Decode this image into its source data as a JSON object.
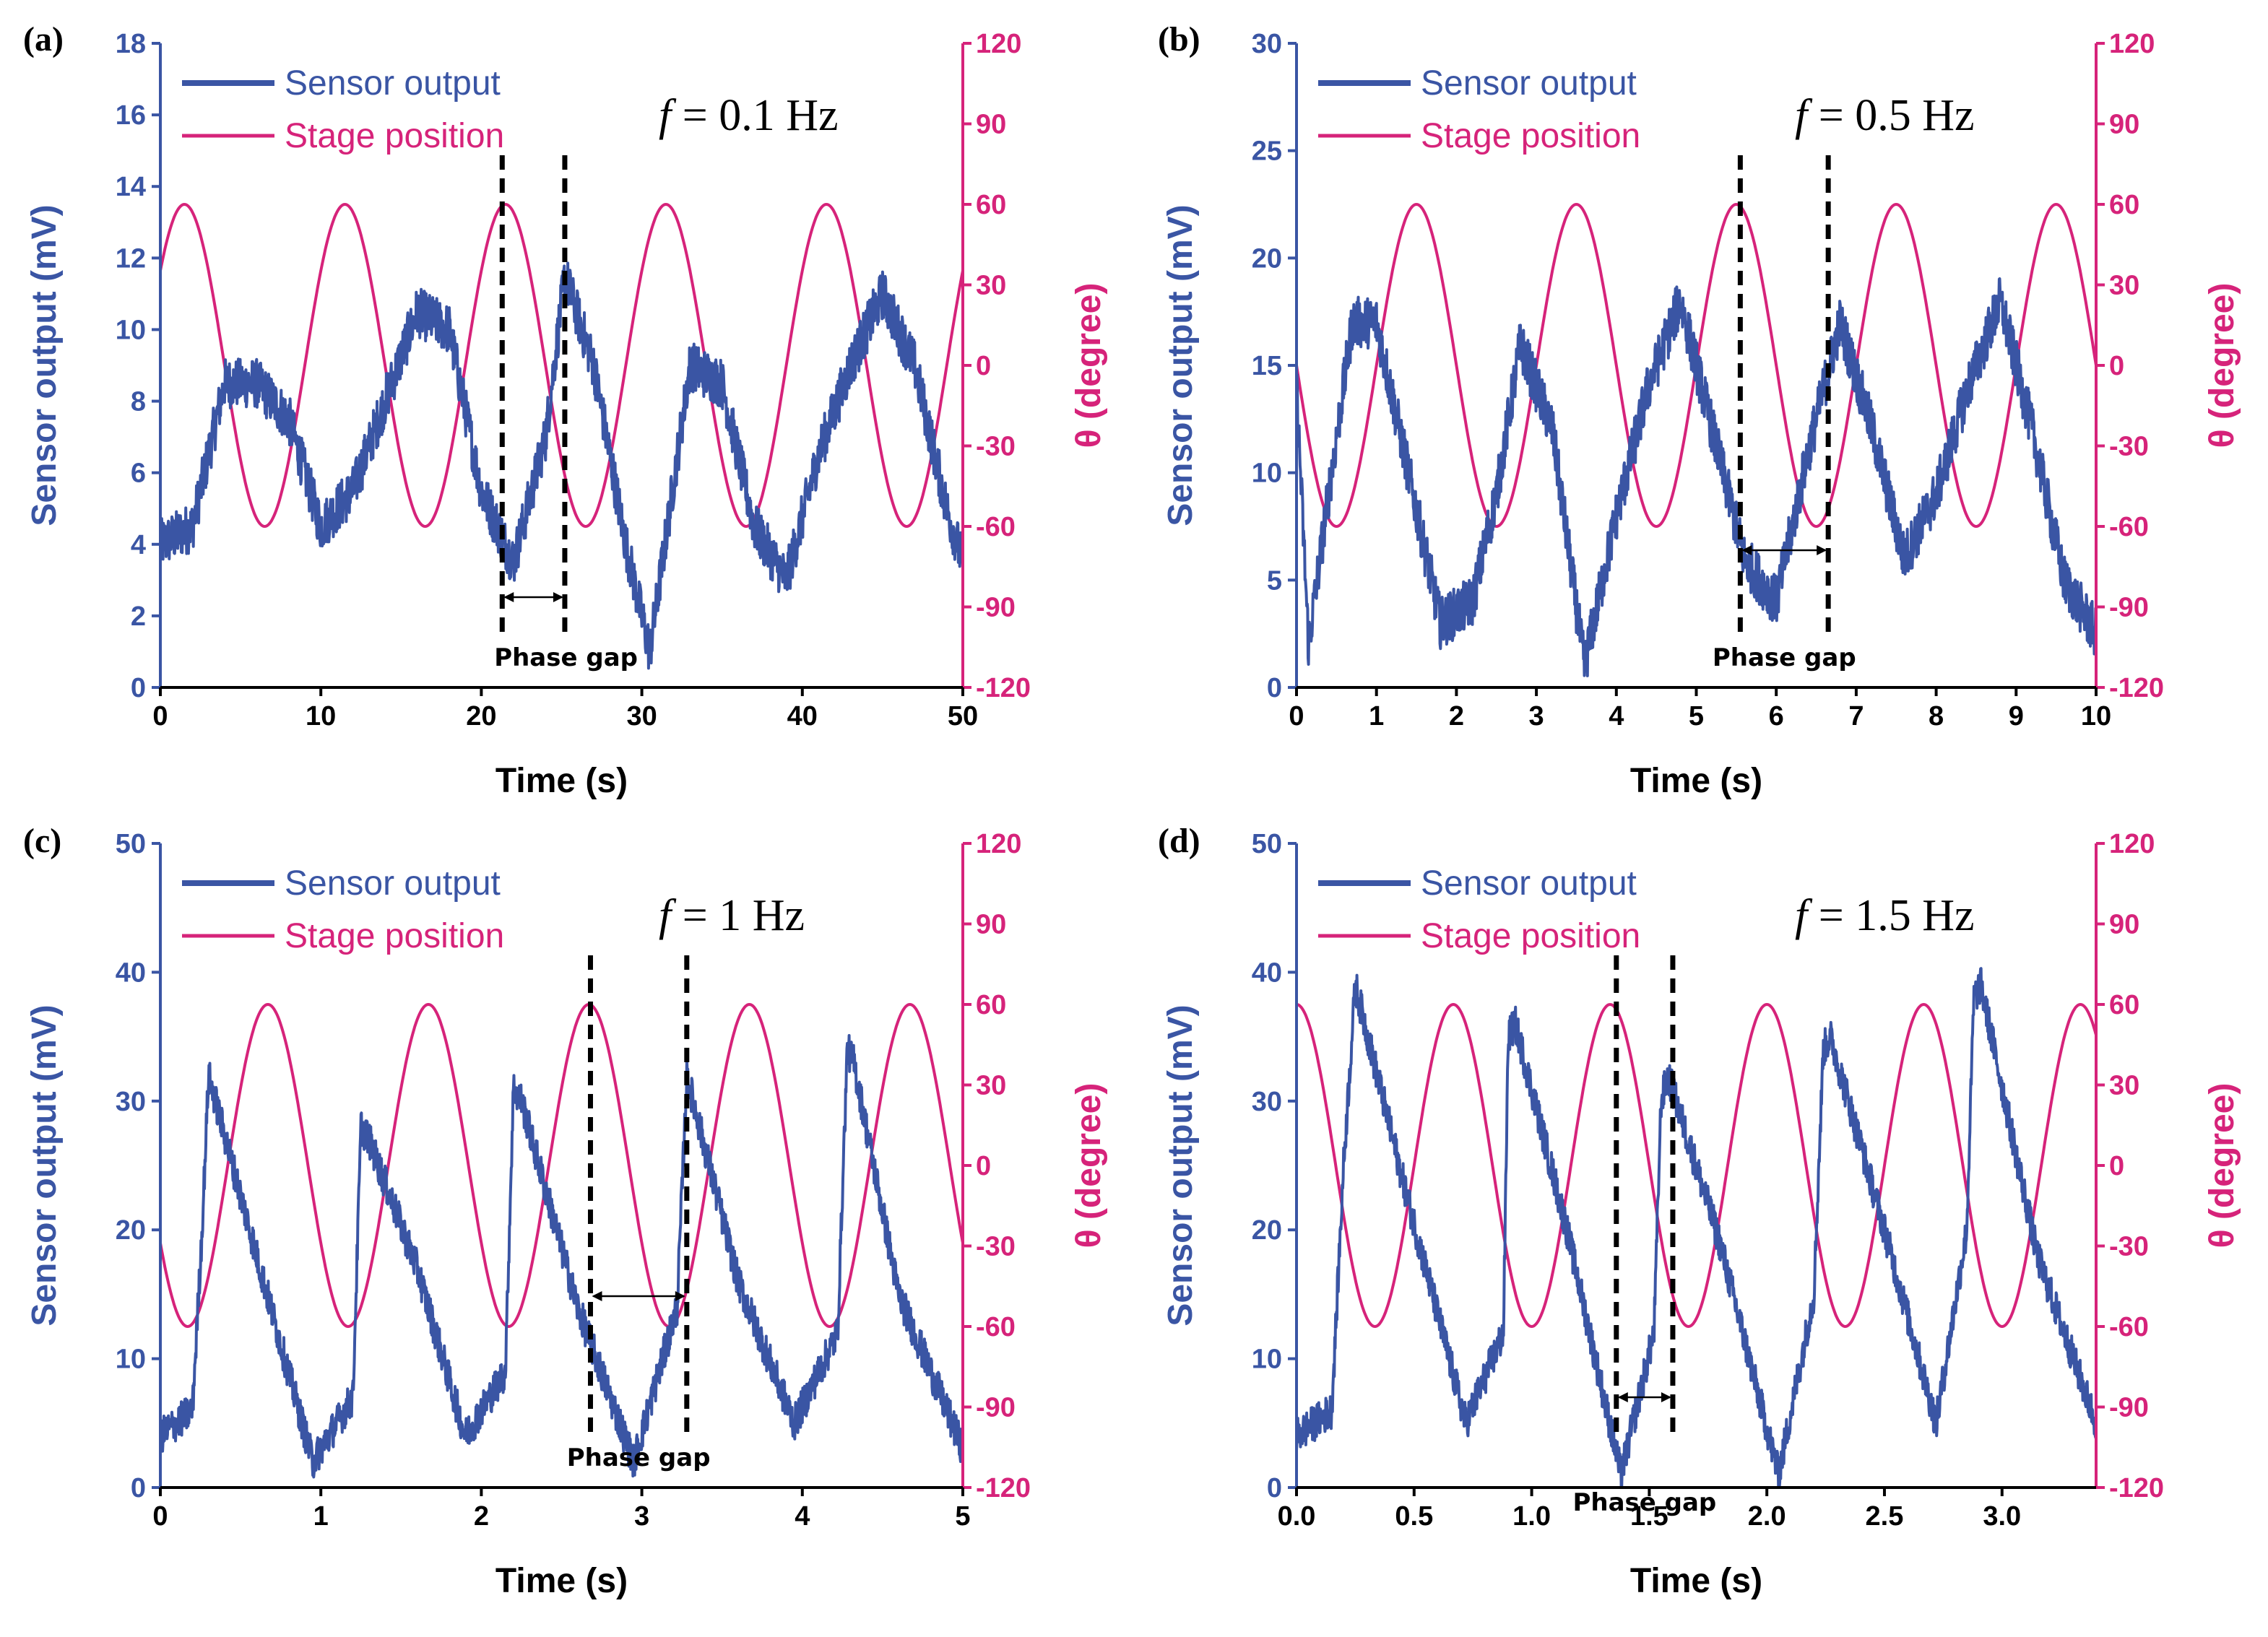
{
  "figure": {
    "legend_series": [
      "Sensor output",
      "Stage position"
    ]
  },
  "chart_data": [
    {
      "panel": "(a)",
      "type": "line",
      "frequency_label": "f = 0.1 Hz",
      "freq_symbol": "f",
      "freq_value": " = 0.1 Hz",
      "xlabel": "Time (s)",
      "ylabel": "Sensor output (mV)",
      "y2label": "θ (degree)",
      "xlim": [
        0,
        50
      ],
      "ylim": [
        0,
        18
      ],
      "y2lim": [
        -120,
        120
      ],
      "xticks": [
        "0",
        "10",
        "20",
        "30",
        "40",
        "50"
      ],
      "yticks": [
        "0",
        "2",
        "4",
        "6",
        "8",
        "10",
        "12",
        "14",
        "16",
        "18"
      ],
      "y2ticks": [
        "-120",
        "-90",
        "-60",
        "-30",
        "0",
        "30",
        "60",
        "90",
        "120"
      ],
      "series": [
        {
          "name": "Sensor output",
          "color": "#3a55a4",
          "axis": "left",
          "x": [
            0,
            2,
            4,
            6,
            8,
            10,
            12,
            14,
            16,
            18,
            20,
            22,
            24,
            25.2,
            27,
            29,
            30.5,
            33,
            35,
            37,
            39,
            41,
            43,
            45,
            47,
            49,
            50
          ],
          "y": [
            4,
            4.5,
            8.5,
            8.5,
            7.5,
            4.5,
            5.5,
            8,
            10.5,
            10,
            5.5,
            3.5,
            7,
            11.5,
            9,
            4,
            1,
            9,
            8.5,
            4.5,
            3,
            6.5,
            9,
            11,
            9,
            5,
            3.5
          ],
          "noise_amp": 0.7
        },
        {
          "name": "Stage position",
          "color": "#d6237a",
          "axis": "right",
          "shape": "sine",
          "amplitude": 60,
          "period": 10,
          "peak_at": 1.5
        }
      ],
      "annotations": {
        "text": "Phase gap",
        "dashed_lines_x": [
          21.3,
          25.2
        ]
      }
    },
    {
      "panel": "(b)",
      "type": "line",
      "frequency_label": "f = 0.5 Hz",
      "freq_symbol": "f",
      "freq_value": " = 0.5 Hz",
      "xlabel": "Time (s)",
      "ylabel": "Sensor output (mV)",
      "y2label": "θ (degree)",
      "xlim": [
        0,
        10
      ],
      "ylim": [
        0,
        30
      ],
      "y2lim": [
        -120,
        120
      ],
      "xticks": [
        "0",
        "1",
        "2",
        "3",
        "4",
        "5",
        "6",
        "7",
        "8",
        "9",
        "10"
      ],
      "yticks": [
        "0",
        "5",
        "10",
        "15",
        "20",
        "25",
        "30"
      ],
      "y2ticks": [
        "-120",
        "-90",
        "-60",
        "-30",
        "0",
        "30",
        "60",
        "90",
        "120"
      ],
      "series": [
        {
          "name": "Sensor output",
          "color": "#3a55a4",
          "axis": "left",
          "x": [
            0,
            0.15,
            0.4,
            0.7,
            1.0,
            1.4,
            1.8,
            2.2,
            2.5,
            2.8,
            3.2,
            3.6,
            4.0,
            4.4,
            4.8,
            5.2,
            5.6,
            6.0,
            6.4,
            6.8,
            7.2,
            7.6,
            8.0,
            8.4,
            8.8,
            9.2,
            9.6,
            10
          ],
          "y": [
            14,
            2,
            9,
            17,
            17,
            10,
            3,
            4,
            9,
            16,
            12,
            1,
            8,
            14,
            18,
            12,
            6,
            4,
            11,
            17,
            12,
            6,
            9,
            14,
            18,
            12,
            5,
            2.5
          ],
          "noise_amp": 1.2
        },
        {
          "name": "Stage position",
          "color": "#d6237a",
          "axis": "right",
          "shape": "sine",
          "amplitude": 60,
          "period": 2,
          "peak_at": 1.5
        }
      ],
      "annotations": {
        "text": "Phase gap",
        "dashed_lines_x": [
          5.55,
          6.65
        ]
      }
    },
    {
      "panel": "(c)",
      "type": "line",
      "frequency_label": "f = 1 Hz",
      "freq_symbol": "f",
      "freq_value": " = 1 Hz",
      "xlabel": "Time (s)",
      "ylabel": "Sensor output (mV)",
      "y2label": "θ (degree)",
      "xlim": [
        0,
        5
      ],
      "ylim": [
        0,
        50
      ],
      "y2lim": [
        -120,
        120
      ],
      "xticks": [
        "0",
        "1",
        "2",
        "3",
        "4",
        "5"
      ],
      "yticks": [
        "0",
        "10",
        "20",
        "30",
        "40",
        "50"
      ],
      "y2ticks": [
        "-120",
        "-90",
        "-60",
        "-30",
        "0",
        "30",
        "60",
        "90",
        "120"
      ],
      "series": [
        {
          "name": "Sensor output",
          "color": "#3a55a4",
          "axis": "left",
          "x": [
            0,
            0.2,
            0.26,
            0.3,
            0.6,
            0.95,
            1.2,
            1.25,
            1.3,
            1.6,
            1.9,
            2.15,
            2.2,
            2.25,
            2.6,
            2.95,
            3.22,
            3.28,
            3.32,
            3.6,
            3.95,
            4.22,
            4.28,
            4.32,
            4.6,
            5.0
          ],
          "y": [
            4,
            6,
            20,
            32,
            18,
            2,
            7,
            28,
            27,
            17,
            4,
            9,
            31,
            30,
            14,
            2,
            14,
            32,
            30,
            16,
            5,
            12,
            34,
            33,
            15,
            3
          ],
          "noise_amp": 1.4
        },
        {
          "name": "Stage position",
          "color": "#d6237a",
          "axis": "right",
          "shape": "sine",
          "amplitude": 60,
          "period": 1,
          "peak_at": 0.67
        }
      ],
      "annotations": {
        "text": "Phase gap",
        "dashed_lines_x": [
          2.68,
          3.28
        ]
      }
    },
    {
      "panel": "(d)",
      "type": "line",
      "frequency_label": "f = 1.5 Hz",
      "freq_symbol": "f",
      "freq_value": " = 1.5 Hz",
      "xlabel": "Time (s)",
      "ylabel": "Sensor output (mV)",
      "y2label": "θ (degree)",
      "xlim": [
        0,
        3.4
      ],
      "ylim": [
        0,
        50
      ],
      "y2lim": [
        -120,
        120
      ],
      "xticks": [
        "0.0",
        "0.5",
        "1.0",
        "1.5",
        "2.0",
        "2.5",
        "3.0"
      ],
      "xtick_values": [
        0,
        0.5,
        1.0,
        1.5,
        2.0,
        2.5,
        3.0
      ],
      "yticks": [
        "0",
        "10",
        "20",
        "30",
        "40",
        "50"
      ],
      "y2ticks": [
        "-120",
        "-90",
        "-60",
        "-30",
        "0",
        "30",
        "60",
        "90",
        "120"
      ],
      "series": [
        {
          "name": "Sensor output",
          "color": "#3a55a4",
          "axis": "left",
          "x": [
            0,
            0.15,
            0.2,
            0.25,
            0.45,
            0.72,
            0.88,
            0.9,
            0.93,
            1.15,
            1.38,
            1.52,
            1.55,
            1.58,
            1.8,
            2.05,
            2.2,
            2.24,
            2.27,
            2.5,
            2.72,
            2.85,
            2.88,
            2.91,
            3.15,
            3.4
          ],
          "y": [
            4,
            6,
            25,
            39,
            24,
            5,
            12,
            35,
            36,
            20,
            1,
            12,
            30,
            32,
            19,
            1,
            15,
            34,
            35,
            20,
            5,
            20,
            38,
            39,
            18,
            5
          ],
          "noise_amp": 1.4
        },
        {
          "name": "Stage position",
          "color": "#d6237a",
          "axis": "right",
          "shape": "sine",
          "amplitude": 60,
          "period": 0.6667,
          "peak_at": 0.0
        }
      ],
      "annotations": {
        "text": "Phase gap",
        "dashed_lines_x": [
          1.36,
          1.6
        ]
      }
    }
  ]
}
